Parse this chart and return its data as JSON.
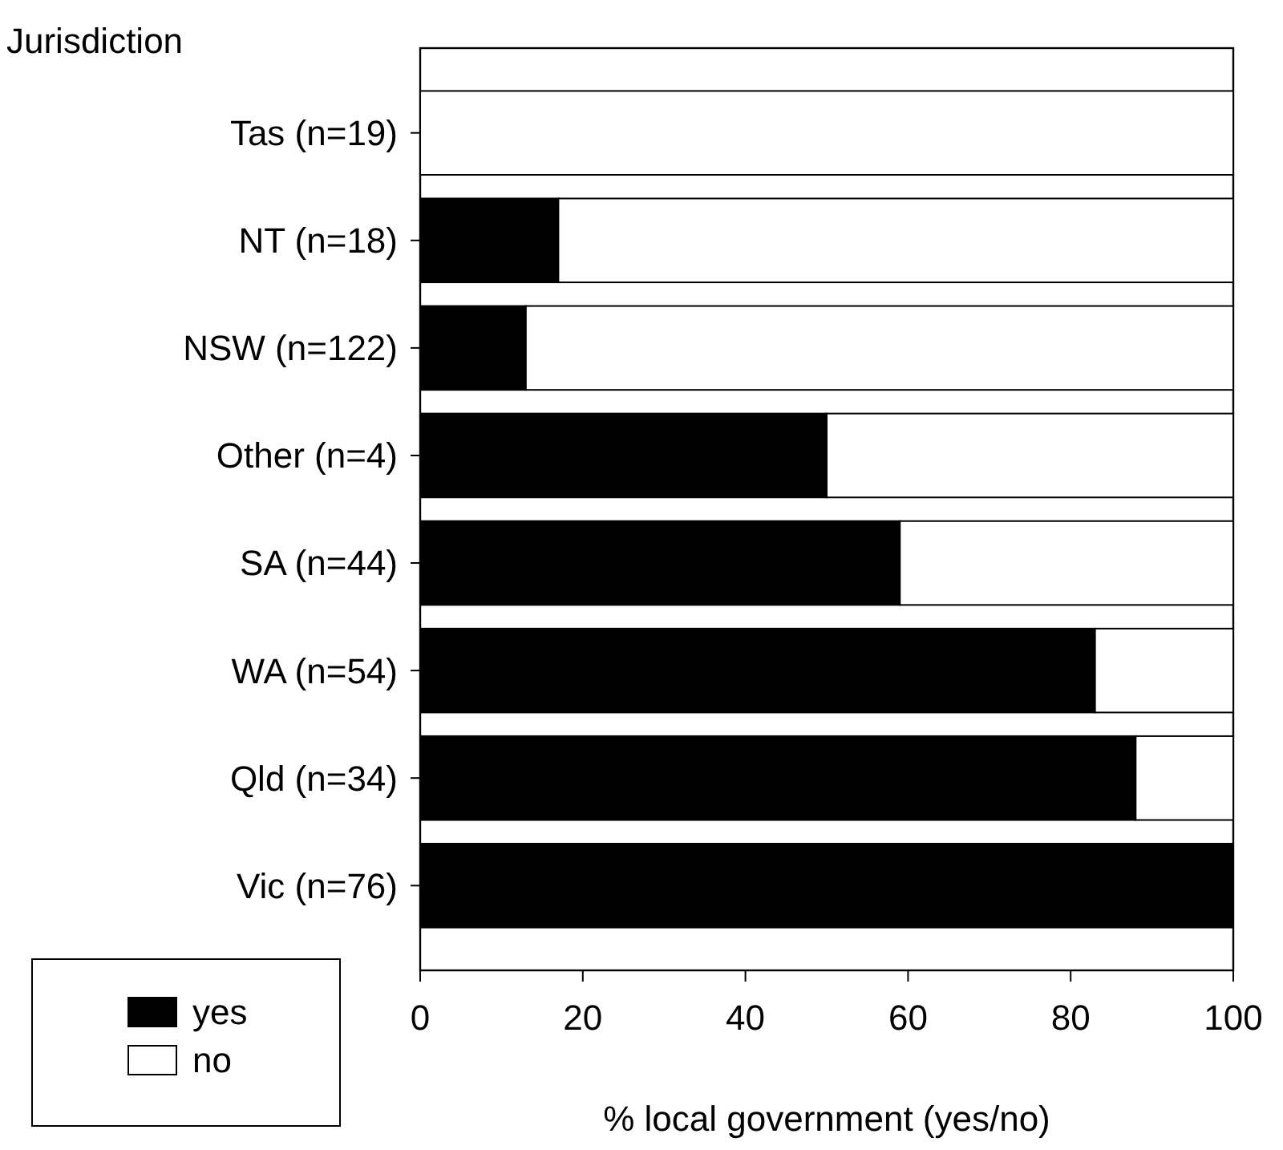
{
  "chart_data": {
    "type": "bar",
    "orientation": "horizontal",
    "stacked": true,
    "ylabel": "Jurisdiction",
    "xlabel": "% local government (yes/no)",
    "categories": [
      "Tas (n=19)",
      "NT (n=18)",
      "NSW (n=122)",
      "Other (n=4)",
      "SA (n=44)",
      "WA (n=54)",
      "Qld (n=34)",
      "Vic (n=76)"
    ],
    "series": [
      {
        "name": "yes",
        "color": "#000000",
        "values": [
          0,
          17,
          13,
          50,
          59,
          83,
          88,
          100
        ]
      },
      {
        "name": "no",
        "color": "#ffffff",
        "values": [
          100,
          83,
          87,
          50,
          41,
          17,
          12,
          0
        ]
      }
    ],
    "xlim": [
      0,
      100
    ],
    "xticks": [
      0,
      20,
      40,
      60,
      80,
      100
    ],
    "grid": false,
    "legend": "bottom left"
  }
}
